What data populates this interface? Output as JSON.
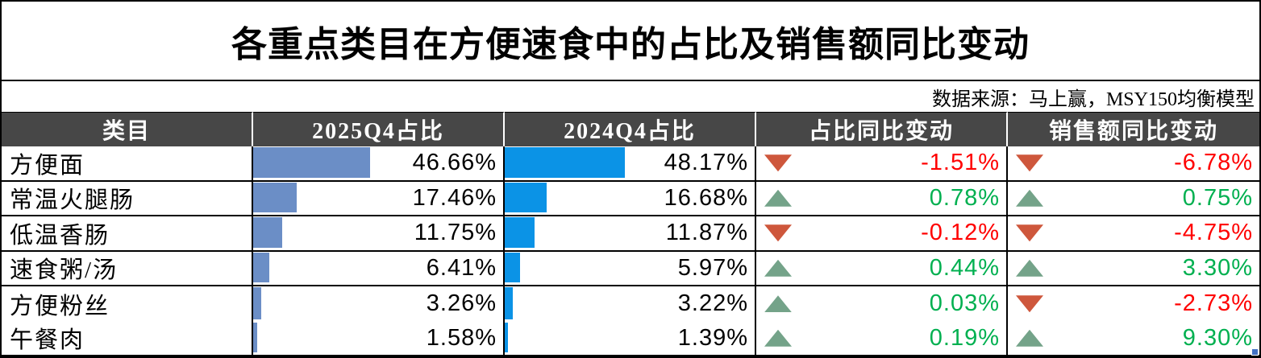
{
  "title": "各重点类目在方便速食中的占比及销售额同比变动",
  "source": "数据来源：马上赢，MSY150均衡模型",
  "columns": {
    "category": "类目",
    "share_2025": "2025Q4占比",
    "share_2024": "2024Q4占比",
    "share_change": "占比同比变动",
    "sales_change": "销售额同比变动"
  },
  "colors": {
    "header_bg": "#474747",
    "bar_2025": "#6B8EC6",
    "bar_2024": "#0B93E6",
    "up_green": "#00B050",
    "down_red": "#FF0000",
    "tri_up": "#74A389",
    "tri_down": "#CE573C",
    "handle_blue": "#4472C4"
  },
  "icons": {
    "up": "up-triangle-icon",
    "down": "down-triangle-icon"
  },
  "rows": [
    {
      "name": "方便面",
      "share_2025": "46.66%",
      "bar_2025": 46.66,
      "share_2024": "48.17%",
      "bar_2024": 48.17,
      "share_change": "-1.51%",
      "share_change_dir": "down",
      "sales_change": "-6.78%",
      "sales_change_dir": "down"
    },
    {
      "name": "常温火腿肠",
      "share_2025": "17.46%",
      "bar_2025": 17.46,
      "share_2024": "16.68%",
      "bar_2024": 16.68,
      "share_change": "0.78%",
      "share_change_dir": "up",
      "sales_change": "0.75%",
      "sales_change_dir": "up"
    },
    {
      "name": "低温香肠",
      "share_2025": "11.75%",
      "bar_2025": 11.75,
      "share_2024": "11.87%",
      "bar_2024": 11.87,
      "share_change": "-0.12%",
      "share_change_dir": "down",
      "sales_change": "-4.75%",
      "sales_change_dir": "down"
    },
    {
      "name": "速食粥/汤",
      "share_2025": "6.41%",
      "bar_2025": 6.41,
      "share_2024": "5.97%",
      "bar_2024": 5.97,
      "share_change": "0.44%",
      "share_change_dir": "up",
      "sales_change": "3.30%",
      "sales_change_dir": "up"
    },
    {
      "name": "方便粉丝",
      "share_2025": "3.26%",
      "bar_2025": 3.26,
      "share_2024": "3.22%",
      "bar_2024": 3.22,
      "share_change": "0.03%",
      "share_change_dir": "up",
      "sales_change": "-2.73%",
      "sales_change_dir": "down"
    },
    {
      "name": "午餐肉",
      "share_2025": "1.58%",
      "bar_2025": 1.58,
      "share_2024": "1.39%",
      "bar_2024": 1.39,
      "share_change": "0.19%",
      "share_change_dir": "up",
      "sales_change": "9.30%",
      "sales_change_dir": "up"
    }
  ],
  "chart_data": {
    "type": "table",
    "title": "各重点类目在方便速食中的占比及销售额同比变动",
    "source": "数据来源：马上赢，MSY150均衡模型",
    "categories": [
      "方便面",
      "常温火腿肠",
      "低温香肠",
      "速食粥/汤",
      "方便粉丝",
      "午餐肉"
    ],
    "series": [
      {
        "name": "2025Q4占比",
        "unit": "%",
        "values": [
          46.66,
          17.46,
          11.75,
          6.41,
          3.26,
          1.58
        ],
        "render": "data-bar",
        "color": "#6B8EC6"
      },
      {
        "name": "2024Q4占比",
        "unit": "%",
        "values": [
          48.17,
          16.68,
          11.87,
          5.97,
          3.22,
          1.39
        ],
        "render": "data-bar",
        "color": "#0B93E6"
      },
      {
        "name": "占比同比变动",
        "unit": "%",
        "values": [
          -1.51,
          0.78,
          -0.12,
          0.44,
          0.03,
          0.19
        ],
        "render": "value-with-trend-icon"
      },
      {
        "name": "销售额同比变动",
        "unit": "%",
        "values": [
          -6.78,
          0.75,
          -4.75,
          3.3,
          -2.73,
          9.3
        ],
        "render": "value-with-trend-icon"
      }
    ],
    "bar_scale": {
      "min": 0,
      "max": 100
    },
    "legend_position": "none",
    "grid": false
  }
}
